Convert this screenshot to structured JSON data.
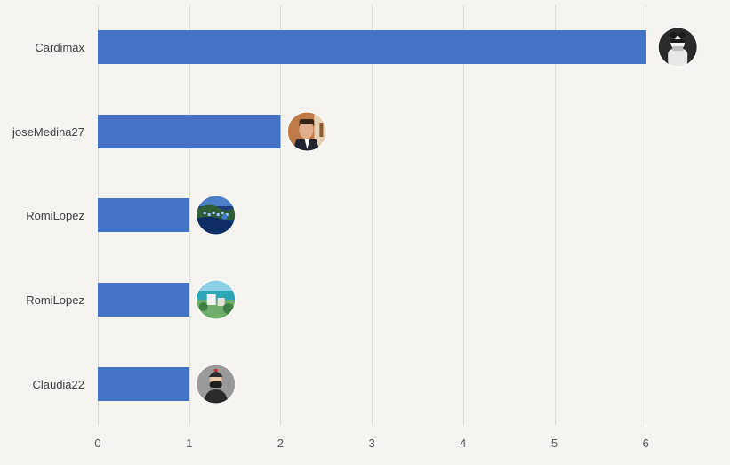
{
  "chart_data": {
    "type": "bar",
    "orientation": "horizontal",
    "categories": [
      "Cardimax",
      "joseMedina27",
      "RomiLopez",
      "RomiLopez",
      "Claudia22"
    ],
    "values": [
      6,
      2,
      1,
      1,
      1
    ],
    "avatars": [
      "masked-figure-avatar-icon",
      "man-in-suit-avatar-icon",
      "coastal-city-avatar-icon",
      "resort-beach-avatar-icon",
      "masked-person-avatar-icon"
    ],
    "title": "",
    "xlabel": "",
    "ylabel": "",
    "xlim": [
      0,
      6.8
    ],
    "xticks": [
      0,
      1,
      2,
      3,
      4,
      5,
      6
    ],
    "grid": "vertical",
    "legend": "none",
    "bar_color": "#4472c4",
    "background": "#f4f3f0"
  }
}
